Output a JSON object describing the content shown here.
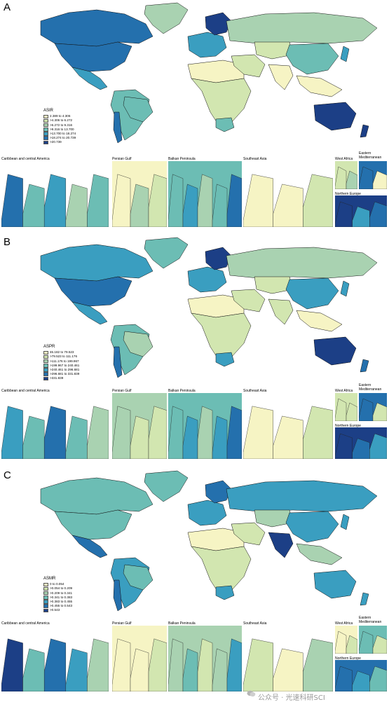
{
  "panels": [
    {
      "letter": "A",
      "legend": {
        "title": "ASIR",
        "labels": [
          "2.389 to 4.306",
          ">4.306 to 6.272",
          ">6.272 to 9.316",
          ">9.316 to 13.700",
          ">13.700 to 18.274",
          ">18.274 to 20.739",
          ">20.739"
        ]
      },
      "insets": {
        "caribbean": "Caribbean and central America",
        "persian_gulf": "Persian Gulf",
        "balkan": "Balkan Peninsula",
        "southeast_asia": "Southeast Asia",
        "west_africa": "West  Africa",
        "eastern_med": "Eastern\nMediterranean",
        "northern_europe": "Northern Europe"
      }
    },
    {
      "letter": "B",
      "legend": {
        "title": "ASPR",
        "labels": [
          "46.182 to 79.523",
          ">79.523 to 111.176",
          ">111.176 to 199.967",
          ">199.967 to 240.461",
          ">240.461 to 296.681",
          ">296.681 to 331.839",
          ">331.839"
        ]
      },
      "insets": {
        "caribbean": "Caribbean and central America",
        "persian_gulf": "Persian Gulf",
        "balkan": "Balkan Peninsula",
        "southeast_asia": "Southeast Asia",
        "west_africa": "West  Africa",
        "eastern_med": "Eastern\nMediterranean",
        "northern_europe": "Northern Europe"
      }
    },
    {
      "letter": "C",
      "legend": {
        "title": "ASMR",
        "labels": [
          "0 to 0.054",
          ">0.054 to 0.209",
          ">0.209 to 0.341",
          ">0.341 to 0.383",
          ">0.383 to 0.455",
          ">0.455 to 0.543",
          ">0.543"
        ]
      },
      "insets": {
        "caribbean": "Caribbean and central America",
        "persian_gulf": "Persian Gulf",
        "balkan": "Balkan Peninsula",
        "southeast_asia": "Southeast Asia",
        "west_africa": "West  Africa",
        "eastern_med": "Eastern\nMediterranean",
        "northern_europe": "Northern Europe"
      }
    }
  ],
  "palette": [
    "#f6f4c4",
    "#d2e6b0",
    "#a9d2b1",
    "#6cbdb4",
    "#3a9ec0",
    "#2470ad",
    "#1c3f86"
  ],
  "watermark": "公众号 · 光速科研SCI",
  "region_classes": {
    "A": {
      "north_america": 5,
      "greenland": 2,
      "canada": 5,
      "mexico": 4,
      "south_america": 3,
      "brazil": 3,
      "chile": 5,
      "europe_west": 4,
      "scandinavia": 6,
      "russia": 2,
      "africa": 1,
      "sahara": 0,
      "south_africa": 3,
      "middle_east": 1,
      "central_asia": 1,
      "china": 3,
      "india": 0,
      "southeast_asia": 0,
      "japan": 4,
      "australia": 6,
      "nz": 6
    },
    "B": {
      "north_america": 5,
      "greenland": 3,
      "canada": 4,
      "mexico": 4,
      "south_america": 3,
      "brazil": 2,
      "chile": 5,
      "europe_west": 4,
      "scandinavia": 6,
      "russia": 2,
      "africa": 1,
      "sahara": 0,
      "south_africa": 4,
      "middle_east": 1,
      "central_asia": 1,
      "china": 4,
      "india": 1,
      "southeast_asia": 0,
      "japan": 4,
      "australia": 6,
      "nz": 5
    },
    "C": {
      "north_america": 3,
      "greenland": 3,
      "canada": 3,
      "mexico": 5,
      "south_america": 4,
      "brazil": 3,
      "chile": 5,
      "europe_west": 4,
      "scandinavia": 5,
      "russia": 4,
      "africa": 1,
      "sahara": 0,
      "south_africa": 4,
      "middle_east": 1,
      "central_asia": 2,
      "china": 4,
      "india": 6,
      "southeast_asia": 2,
      "japan": 4,
      "australia": 4,
      "nz": 4
    }
  }
}
